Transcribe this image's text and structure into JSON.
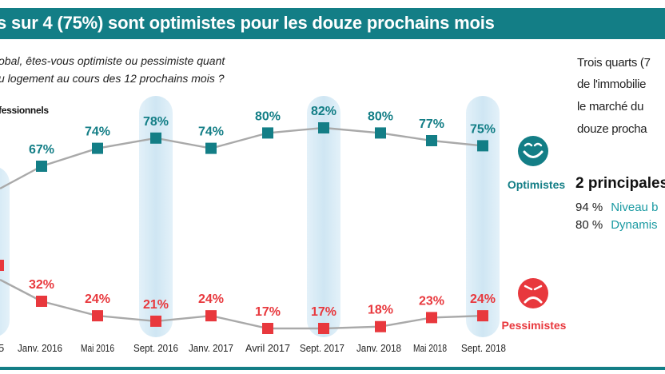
{
  "header": {
    "title": "s sur 4 (75%) sont optimistes pour les douze prochains mois"
  },
  "question": {
    "line1": "obal, êtes-vous optimiste ou pessimiste quant",
    "line2": "u logement au cours des 12 prochains mois ?"
  },
  "panel_label": "fessionnels",
  "chart_data": {
    "type": "line",
    "title": "",
    "x_partial_first_label": "5",
    "categories": [
      "Janv. 2016",
      "Mai 2016",
      "Sept. 2016",
      "Janv. 2017",
      "Avril 2017",
      "Sept. 2017",
      "Janv. 2018",
      "Mai 2018",
      "Sept. 2018"
    ],
    "highlighted_categories": [
      "Sept. 2016",
      "Sept. 2017",
      "Sept. 2018"
    ],
    "series": [
      {
        "name": "Optimistes",
        "color": "#137e86",
        "values": [
          67,
          74,
          78,
          74,
          80,
          82,
          80,
          77,
          75
        ],
        "labels": [
          "67%",
          "74%",
          "78%",
          "74%",
          "80%",
          "82%",
          "80%",
          "77%",
          "75%"
        ]
      },
      {
        "name": "Pessimistes",
        "color": "#e8383d",
        "values": [
          32,
          24,
          21,
          24,
          17,
          17,
          18,
          23,
          24
        ],
        "labels": [
          "32%",
          "24%",
          "21%",
          "24%",
          "17%",
          "17%",
          "18%",
          "23%",
          "24%"
        ]
      }
    ],
    "line_color": "#a9a9a9",
    "highlight_color": "#cfe6f3"
  },
  "side_panel": {
    "summary_lines": [
      "Trois quarts (7",
      "de l'immobilie",
      "le marché du",
      "douze procha"
    ],
    "heading": "2  principales",
    "reasons": [
      {
        "pct": "94 %",
        "text": "Niveau b"
      },
      {
        "pct": "80 %",
        "text": "Dynamis"
      }
    ]
  },
  "icons": {
    "optimist": "smiley-happy-icon",
    "pessimist": "smiley-sad-icon"
  }
}
